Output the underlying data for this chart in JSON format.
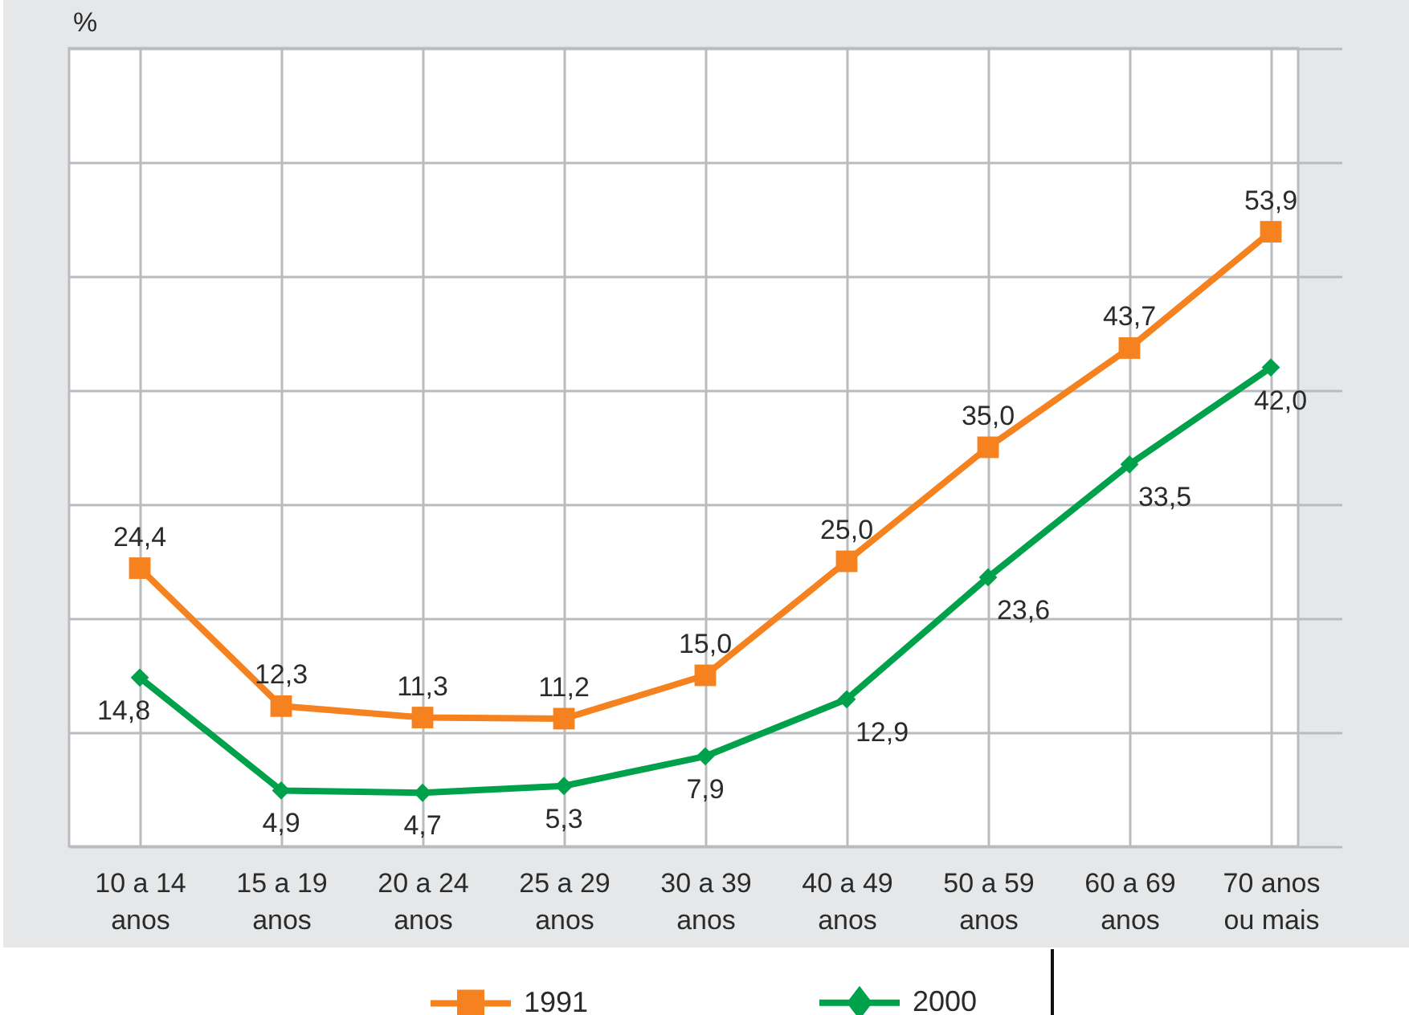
{
  "chart_data": {
    "type": "line",
    "ylabel": "%",
    "categories": [
      "10 a 14 anos",
      "15 a 19 anos",
      "20 a 24 anos",
      "25 a 29 anos",
      "30 a 39 anos",
      "40 a 49 anos",
      "50 a 59 anos",
      "60 a 69 anos",
      "70 anos ou mais"
    ],
    "series": [
      {
        "name": "1991",
        "color": "#f5821f",
        "marker": "square",
        "values": [
          24.4,
          12.3,
          11.3,
          11.2,
          15.0,
          25.0,
          35.0,
          43.7,
          53.9
        ],
        "value_labels": [
          "24,4",
          "12,3",
          "11,3",
          "11,2",
          "15,0",
          "25,0",
          "35,0",
          "43,7",
          "53,9"
        ]
      },
      {
        "name": "2000",
        "color": "#00a14b",
        "marker": "diamond",
        "values": [
          14.8,
          4.9,
          4.7,
          5.3,
          7.9,
          12.9,
          23.6,
          33.5,
          42.0
        ],
        "value_labels": [
          "14,8",
          "4,9",
          "4,7",
          "5,3",
          "7,9",
          "12,9",
          "23,6",
          "33,5",
          "42,0"
        ]
      }
    ],
    "ylim": [
      0,
      70
    ],
    "yticks": [
      {
        "value": 0,
        "label": null
      },
      {
        "value": 10,
        "label": null
      },
      {
        "value": 20,
        "label": null
      },
      {
        "value": 30,
        "label": null
      },
      {
        "value": 40,
        "label": null
      },
      {
        "value": 50,
        "label": null
      },
      {
        "value": 60,
        "label": null
      },
      {
        "value": 70,
        "label": null
      }
    ],
    "tick_labels": "x",
    "grid": true,
    "legend": "bottom",
    "line_style": "solid"
  }
}
